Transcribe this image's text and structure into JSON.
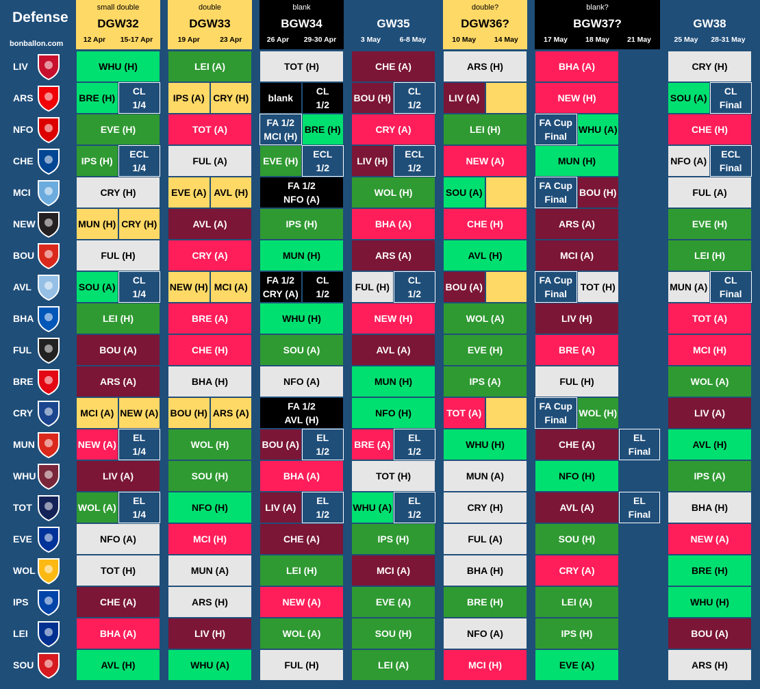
{
  "title": "Defense",
  "site": "bonballon.com",
  "columns": [
    {
      "sub": "small double",
      "gw": "DGW32",
      "d1": "12 Apr",
      "d2": "15-17 Apr",
      "style": "yellow"
    },
    {
      "sub": "double",
      "gw": "DGW33",
      "d1": "19 Apr",
      "d2": "23 Apr",
      "style": "yellow"
    },
    {
      "sub": "blank",
      "gw": "BGW34",
      "d1": "26 Apr",
      "d2": "29-30 Apr",
      "style": "black"
    },
    {
      "sub": "",
      "gw": "GW35",
      "d1": "3 May",
      "d2": "6-8 May",
      "style": "blue"
    },
    {
      "sub": "double?",
      "gw": "DGW36?",
      "d1": "10 May",
      "d2": "14 May",
      "style": "yellow"
    },
    {
      "sub": "blank?",
      "gw": "BGW37?",
      "d1": "17 May",
      "d2": "18 May",
      "d3": "21 May",
      "style": "black"
    },
    {
      "sub": "",
      "gw": "GW38",
      "d1": "25 May",
      "d2": "28-31 May",
      "style": "blue"
    }
  ],
  "legend_colors": {
    "c-dg": "#2f9a32",
    "c-lg": "#00e070",
    "c-gr": "#e7e6e6",
    "c-pk": "#ff1e5a",
    "c-mr": "#7b1637",
    "c-bl": "#1f4e79",
    "c-bk": "#000000",
    "c-ye": "#ffd966"
  },
  "rows": [
    {
      "team": "LIV",
      "crest_color": "#c8102e",
      "cells": [
        [
          {
            "t": "WHU (H)",
            "c": "c-lg"
          }
        ],
        [
          {
            "t": "LEI (A)",
            "c": "c-dg"
          }
        ],
        [
          {
            "t": "TOT (H)",
            "c": "c-gr"
          }
        ],
        [
          {
            "t": "CHE (A)",
            "c": "c-mr"
          }
        ],
        [
          {
            "t": "ARS (H)",
            "c": "c-gr"
          }
        ],
        [
          {
            "t": "BHA (A)",
            "c": "c-pk"
          }
        ],
        [
          {
            "t": "CRY (H)",
            "c": "c-gr"
          }
        ]
      ]
    },
    {
      "team": "ARS",
      "crest_color": "#ef0107",
      "cells": [
        [
          {
            "t": "BRE (H)",
            "c": "c-lg"
          },
          {
            "t": "CL\n1/4",
            "c": "c-bl"
          }
        ],
        [
          {
            "t": "IPS (A)",
            "c": "c-ye"
          },
          {
            "t": "CRY (H)",
            "c": "c-ye"
          }
        ],
        [
          {
            "t": "blank",
            "c": "c-bk"
          },
          {
            "t": "CL\n1/2",
            "c": "c-bk"
          }
        ],
        [
          {
            "t": "BOU (H)",
            "c": "c-mr"
          },
          {
            "t": "CL\n1/2",
            "c": "c-bl"
          }
        ],
        [
          {
            "t": "LIV (A)",
            "c": "c-mr"
          },
          {
            "t": "",
            "c": "c-ye"
          }
        ],
        [
          {
            "t": "NEW (H)",
            "c": "c-pk"
          }
        ],
        [
          {
            "t": "SOU (A)",
            "c": "c-lg"
          },
          {
            "t": "CL\nFinal",
            "c": "c-bl"
          }
        ]
      ]
    },
    {
      "team": "NFO",
      "crest_color": "#dd0000",
      "cells": [
        [
          {
            "t": "EVE (H)",
            "c": "c-dg"
          }
        ],
        [
          {
            "t": "TOT (A)",
            "c": "c-pk"
          }
        ],
        [
          {
            "t": "FA 1/2\nMCI (H)",
            "c": "c-bl"
          },
          {
            "t": "BRE (H)",
            "c": "c-lg"
          }
        ],
        [
          {
            "t": "CRY (A)",
            "c": "c-pk"
          }
        ],
        [
          {
            "t": "LEI (H)",
            "c": "c-dg"
          }
        ],
        [
          {
            "t": "FA Cup\nFinal",
            "c": "c-bl"
          },
          {
            "t": "WHU (A)",
            "c": "c-lg"
          }
        ],
        [
          {
            "t": "CHE (H)",
            "c": "c-pk"
          }
        ]
      ]
    },
    {
      "team": "CHE",
      "crest_color": "#034694",
      "cells": [
        [
          {
            "t": "IPS (H)",
            "c": "c-dg"
          },
          {
            "t": "ECL\n1/4",
            "c": "c-bl"
          }
        ],
        [
          {
            "t": "FUL (A)",
            "c": "c-gr"
          }
        ],
        [
          {
            "t": "EVE (H)",
            "c": "c-dg"
          },
          {
            "t": "ECL\n1/2",
            "c": "c-bl"
          }
        ],
        [
          {
            "t": "LIV (H)",
            "c": "c-mr"
          },
          {
            "t": "ECL\n1/2",
            "c": "c-bl"
          }
        ],
        [
          {
            "t": "NEW (A)",
            "c": "c-pk"
          }
        ],
        [
          {
            "t": "MUN (H)",
            "c": "c-lg"
          }
        ],
        [
          {
            "t": "NFO (A)",
            "c": "c-gr"
          },
          {
            "t": "ECL\nFinal",
            "c": "c-bl"
          }
        ]
      ]
    },
    {
      "team": "MCI",
      "crest_color": "#6cabdd",
      "cells": [
        [
          {
            "t": "CRY (H)",
            "c": "c-gr"
          }
        ],
        [
          {
            "t": "EVE (A)",
            "c": "c-ye"
          },
          {
            "t": "AVL (H)",
            "c": "c-ye"
          }
        ],
        [
          {
            "t": "FA 1/2\nNFO (A)",
            "c": "c-bk"
          }
        ],
        [
          {
            "t": "WOL (H)",
            "c": "c-dg"
          }
        ],
        [
          {
            "t": "SOU (A)",
            "c": "c-lg"
          },
          {
            "t": "",
            "c": "c-ye"
          }
        ],
        [
          {
            "t": "FA Cup\nFinal",
            "c": "c-bl"
          },
          {
            "t": "BOU (H)",
            "c": "c-mr"
          }
        ],
        [
          {
            "t": "FUL (A)",
            "c": "c-gr"
          }
        ]
      ]
    },
    {
      "team": "NEW",
      "crest_color": "#241f20",
      "cells": [
        [
          {
            "t": "MUN (H)",
            "c": "c-ye"
          },
          {
            "t": "CRY (H)",
            "c": "c-ye"
          }
        ],
        [
          {
            "t": "AVL (A)",
            "c": "c-mr"
          }
        ],
        [
          {
            "t": "IPS (H)",
            "c": "c-dg"
          }
        ],
        [
          {
            "t": "BHA (A)",
            "c": "c-pk"
          }
        ],
        [
          {
            "t": "CHE (H)",
            "c": "c-pk"
          }
        ],
        [
          {
            "t": "ARS (A)",
            "c": "c-mr"
          }
        ],
        [
          {
            "t": "EVE (H)",
            "c": "c-dg"
          }
        ]
      ]
    },
    {
      "team": "BOU",
      "crest_color": "#da291c",
      "cells": [
        [
          {
            "t": "FUL (H)",
            "c": "c-gr"
          }
        ],
        [
          {
            "t": "CRY (A)",
            "c": "c-pk"
          }
        ],
        [
          {
            "t": "MUN (H)",
            "c": "c-lg"
          }
        ],
        [
          {
            "t": "ARS (A)",
            "c": "c-mr"
          }
        ],
        [
          {
            "t": "AVL (H)",
            "c": "c-lg"
          }
        ],
        [
          {
            "t": "MCI (A)",
            "c": "c-mr"
          }
        ],
        [
          {
            "t": "LEI (H)",
            "c": "c-dg"
          }
        ]
      ]
    },
    {
      "team": "AVL",
      "crest_color": "#95bfe5",
      "cells": [
        [
          {
            "t": "SOU (A)",
            "c": "c-lg"
          },
          {
            "t": "CL\n1/4",
            "c": "c-bl"
          }
        ],
        [
          {
            "t": "NEW (H)",
            "c": "c-ye"
          },
          {
            "t": "MCI (A)",
            "c": "c-ye"
          }
        ],
        [
          {
            "t": "FA 1/2\nCRY (A)",
            "c": "c-bk"
          },
          {
            "t": "CL\n1/2",
            "c": "c-bk"
          }
        ],
        [
          {
            "t": "FUL (H)",
            "c": "c-gr"
          },
          {
            "t": "CL\n1/2",
            "c": "c-bl"
          }
        ],
        [
          {
            "t": "BOU (A)",
            "c": "c-mr"
          },
          {
            "t": "",
            "c": "c-ye"
          }
        ],
        [
          {
            "t": "FA Cup\nFinal",
            "c": "c-bl"
          },
          {
            "t": "TOT (H)",
            "c": "c-gr"
          }
        ],
        [
          {
            "t": "MUN (A)",
            "c": "c-gr"
          },
          {
            "t": "CL\nFinal",
            "c": "c-bl"
          }
        ]
      ]
    },
    {
      "team": "BHA",
      "crest_color": "#0057b8",
      "cells": [
        [
          {
            "t": "LEI (H)",
            "c": "c-dg"
          }
        ],
        [
          {
            "t": "BRE (A)",
            "c": "c-pk"
          }
        ],
        [
          {
            "t": "WHU (H)",
            "c": "c-lg"
          }
        ],
        [
          {
            "t": "NEW (H)",
            "c": "c-pk"
          }
        ],
        [
          {
            "t": "WOL (A)",
            "c": "c-dg"
          }
        ],
        [
          {
            "t": "LIV (H)",
            "c": "c-mr"
          }
        ],
        [
          {
            "t": "TOT (A)",
            "c": "c-pk"
          }
        ]
      ]
    },
    {
      "team": "FUL",
      "crest_color": "#222222",
      "cells": [
        [
          {
            "t": "BOU (A)",
            "c": "c-mr"
          }
        ],
        [
          {
            "t": "CHE (H)",
            "c": "c-pk"
          }
        ],
        [
          {
            "t": "SOU (A)",
            "c": "c-dg"
          }
        ],
        [
          {
            "t": "AVL (A)",
            "c": "c-mr"
          }
        ],
        [
          {
            "t": "EVE (H)",
            "c": "c-dg"
          }
        ],
        [
          {
            "t": "BRE (A)",
            "c": "c-pk"
          }
        ],
        [
          {
            "t": "MCI (H)",
            "c": "c-pk"
          }
        ]
      ]
    },
    {
      "team": "BRE",
      "crest_color": "#e30613",
      "cells": [
        [
          {
            "t": "ARS (A)",
            "c": "c-mr"
          }
        ],
        [
          {
            "t": "BHA (H)",
            "c": "c-gr"
          }
        ],
        [
          {
            "t": "NFO (A)",
            "c": "c-gr"
          }
        ],
        [
          {
            "t": "MUN (H)",
            "c": "c-lg"
          }
        ],
        [
          {
            "t": "IPS (A)",
            "c": "c-dg"
          }
        ],
        [
          {
            "t": "FUL (H)",
            "c": "c-gr"
          }
        ],
        [
          {
            "t": "WOL (A)",
            "c": "c-dg"
          }
        ]
      ]
    },
    {
      "team": "CRY",
      "crest_color": "#1b458f",
      "cells": [
        [
          {
            "t": "MCI (A)",
            "c": "c-ye"
          },
          {
            "t": "NEW (A)",
            "c": "c-ye"
          }
        ],
        [
          {
            "t": "BOU (H)",
            "c": "c-ye"
          },
          {
            "t": "ARS (A)",
            "c": "c-ye"
          }
        ],
        [
          {
            "t": "FA 1/2\nAVL (H)",
            "c": "c-bk"
          }
        ],
        [
          {
            "t": "NFO (H)",
            "c": "c-lg"
          }
        ],
        [
          {
            "t": "TOT (A)",
            "c": "c-pk"
          },
          {
            "t": "",
            "c": "c-ye"
          }
        ],
        [
          {
            "t": "FA Cup\nFinal",
            "c": "c-bl"
          },
          {
            "t": "WOL (H)",
            "c": "c-dg"
          }
        ],
        [
          {
            "t": "LIV (A)",
            "c": "c-mr"
          }
        ]
      ]
    },
    {
      "team": "MUN",
      "crest_color": "#da291c",
      "cells": [
        [
          {
            "t": "NEW (A)",
            "c": "c-pk"
          },
          {
            "t": "EL\n1/4",
            "c": "c-bl"
          }
        ],
        [
          {
            "t": "WOL (H)",
            "c": "c-dg"
          }
        ],
        [
          {
            "t": "BOU (A)",
            "c": "c-mr"
          },
          {
            "t": "EL\n1/2",
            "c": "c-bl"
          }
        ],
        [
          {
            "t": "BRE (A)",
            "c": "c-pk"
          },
          {
            "t": "EL\n1/2",
            "c": "c-bl"
          }
        ],
        [
          {
            "t": "WHU (H)",
            "c": "c-lg"
          }
        ],
        [
          {
            "t": "CHE (A)",
            "c": "c-mr"
          },
          {
            "t": "EL\nFinal",
            "c": "c-bl"
          }
        ],
        [
          {
            "t": "AVL (H)",
            "c": "c-lg"
          }
        ]
      ]
    },
    {
      "team": "WHU",
      "crest_color": "#7a263a",
      "cells": [
        [
          {
            "t": "LIV (A)",
            "c": "c-mr"
          }
        ],
        [
          {
            "t": "SOU (H)",
            "c": "c-dg"
          }
        ],
        [
          {
            "t": "BHA (A)",
            "c": "c-pk"
          }
        ],
        [
          {
            "t": "TOT (H)",
            "c": "c-gr"
          }
        ],
        [
          {
            "t": "MUN (A)",
            "c": "c-gr"
          }
        ],
        [
          {
            "t": "NFO (H)",
            "c": "c-lg"
          }
        ],
        [
          {
            "t": "IPS (A)",
            "c": "c-dg"
          }
        ]
      ]
    },
    {
      "team": "TOT",
      "crest_color": "#132257",
      "cells": [
        [
          {
            "t": "WOL (A)",
            "c": "c-dg"
          },
          {
            "t": "EL\n1/4",
            "c": "c-bl"
          }
        ],
        [
          {
            "t": "NFO (H)",
            "c": "c-lg"
          }
        ],
        [
          {
            "t": "LIV (A)",
            "c": "c-mr"
          },
          {
            "t": "EL\n1/2",
            "c": "c-bl"
          }
        ],
        [
          {
            "t": "WHU (A)",
            "c": "c-lg"
          },
          {
            "t": "EL\n1/2",
            "c": "c-bl"
          }
        ],
        [
          {
            "t": "CRY (H)",
            "c": "c-gr"
          }
        ],
        [
          {
            "t": "AVL (A)",
            "c": "c-mr"
          },
          {
            "t": "EL\nFinal",
            "c": "c-bl"
          }
        ],
        [
          {
            "t": "BHA (H)",
            "c": "c-gr"
          }
        ]
      ]
    },
    {
      "team": "EVE",
      "crest_color": "#003399",
      "cells": [
        [
          {
            "t": "NFO (A)",
            "c": "c-gr"
          }
        ],
        [
          {
            "t": "MCI (H)",
            "c": "c-pk"
          }
        ],
        [
          {
            "t": "CHE (A)",
            "c": "c-mr"
          }
        ],
        [
          {
            "t": "IPS (H)",
            "c": "c-dg"
          }
        ],
        [
          {
            "t": "FUL (A)",
            "c": "c-gr"
          }
        ],
        [
          {
            "t": "SOU (H)",
            "c": "c-dg"
          }
        ],
        [
          {
            "t": "NEW (A)",
            "c": "c-pk"
          }
        ]
      ]
    },
    {
      "team": "WOL",
      "crest_color": "#fdb913",
      "cells": [
        [
          {
            "t": "TOT (H)",
            "c": "c-gr"
          }
        ],
        [
          {
            "t": "MUN (A)",
            "c": "c-gr"
          }
        ],
        [
          {
            "t": "LEI (H)",
            "c": "c-dg"
          }
        ],
        [
          {
            "t": "MCI (A)",
            "c": "c-mr"
          }
        ],
        [
          {
            "t": "BHA (H)",
            "c": "c-gr"
          }
        ],
        [
          {
            "t": "CRY (A)",
            "c": "c-pk"
          }
        ],
        [
          {
            "t": "BRE (H)",
            "c": "c-lg"
          }
        ]
      ]
    },
    {
      "team": "IPS",
      "crest_color": "#0044a9",
      "cells": [
        [
          {
            "t": "CHE (A)",
            "c": "c-mr"
          }
        ],
        [
          {
            "t": "ARS (H)",
            "c": "c-gr"
          }
        ],
        [
          {
            "t": "NEW (A)",
            "c": "c-pk"
          }
        ],
        [
          {
            "t": "EVE (A)",
            "c": "c-dg"
          }
        ],
        [
          {
            "t": "BRE (H)",
            "c": "c-dg"
          }
        ],
        [
          {
            "t": "LEI (A)",
            "c": "c-dg"
          }
        ],
        [
          {
            "t": "WHU (H)",
            "c": "c-lg"
          }
        ]
      ]
    },
    {
      "team": "LEI",
      "crest_color": "#003090",
      "cells": [
        [
          {
            "t": "BHA (A)",
            "c": "c-pk"
          }
        ],
        [
          {
            "t": "LIV (H)",
            "c": "c-mr"
          }
        ],
        [
          {
            "t": "WOL (A)",
            "c": "c-dg"
          }
        ],
        [
          {
            "t": "SOU (H)",
            "c": "c-dg"
          }
        ],
        [
          {
            "t": "NFO (A)",
            "c": "c-gr"
          }
        ],
        [
          {
            "t": "IPS (H)",
            "c": "c-dg"
          }
        ],
        [
          {
            "t": "BOU (A)",
            "c": "c-mr"
          }
        ]
      ]
    },
    {
      "team": "SOU",
      "crest_color": "#d71920",
      "cells": [
        [
          {
            "t": "AVL (H)",
            "c": "c-lg"
          }
        ],
        [
          {
            "t": "WHU (A)",
            "c": "c-lg"
          }
        ],
        [
          {
            "t": "FUL (H)",
            "c": "c-gr"
          }
        ],
        [
          {
            "t": "LEI (A)",
            "c": "c-dg"
          }
        ],
        [
          {
            "t": "MCI (H)",
            "c": "c-pk"
          }
        ],
        [
          {
            "t": "EVE (A)",
            "c": "c-lg"
          }
        ],
        [
          {
            "t": "ARS (H)",
            "c": "c-gr"
          }
        ]
      ]
    }
  ]
}
